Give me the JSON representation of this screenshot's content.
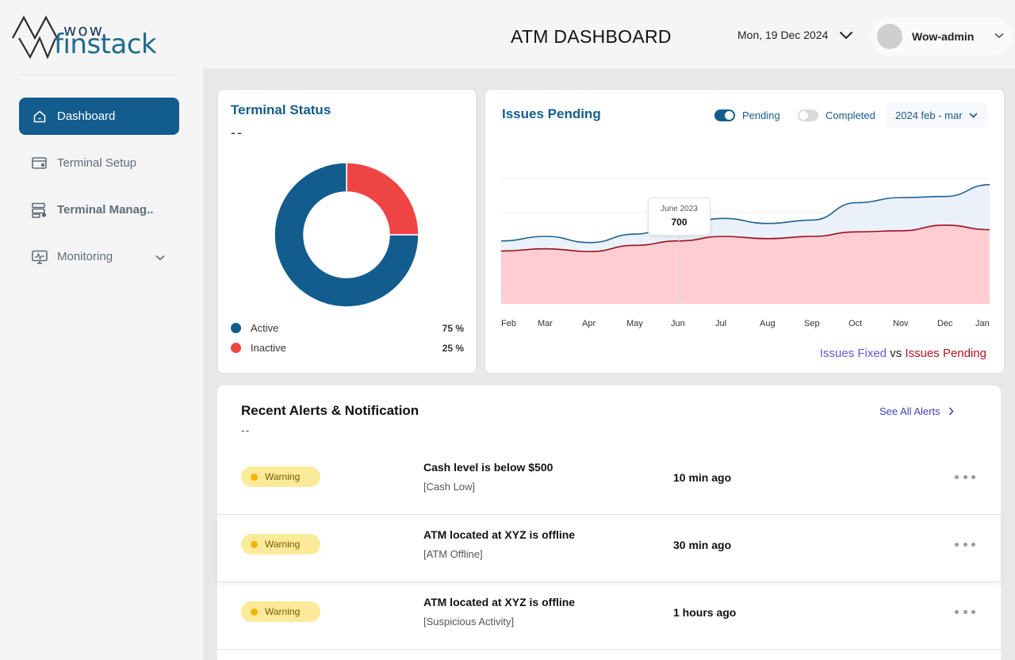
{
  "brand": {
    "line1": "wow",
    "line2": "finstack"
  },
  "header": {
    "title": "ATM DASHBOARD",
    "date": "Mon, 19 Dec 2024",
    "user": "Wow-admin"
  },
  "sidebar": {
    "items": [
      {
        "label": "Dashboard",
        "icon": "home-icon",
        "active": true
      },
      {
        "label": "Terminal Setup",
        "icon": "terminal-setup-icon"
      },
      {
        "label": "Terminal Manag..",
        "icon": "terminal-manage-icon"
      },
      {
        "label": "Monitoring",
        "icon": "monitor-icon"
      }
    ]
  },
  "terminal_status": {
    "title": "Terminal Status",
    "subtitle": "--",
    "legend": [
      {
        "label": "Active",
        "pct": "75 %",
        "color": "#135d8e",
        "value": 75
      },
      {
        "label": "Inactive",
        "pct": "25 %",
        "color": "#ef4444",
        "value": 25
      }
    ]
  },
  "issues": {
    "title": "Issues Pending",
    "toggle_pending": "Pending",
    "toggle_completed": "Completed",
    "range": "2024 feb - mar",
    "tooltip": {
      "date": "June 2023",
      "value": "700"
    },
    "caption": {
      "fixed": "Issues Fixed",
      "vs": "vs",
      "pending": "Issues Pending"
    },
    "colors": {
      "fixed_line": "#1f5f8f",
      "fixed_fill": "#eaf1fb",
      "pending_line": "#9a0f1c",
      "pending_fill": "#fecdd2"
    }
  },
  "chart_data": {
    "type": "area",
    "title": "Issues Pending",
    "categories": [
      "Feb",
      "Mar",
      "Apr",
      "May",
      "Jun",
      "Jul",
      "Aug",
      "Sep",
      "Oct",
      "Nov",
      "Dec",
      "Jan"
    ],
    "series": [
      {
        "name": "Issues Fixed",
        "values": [
          560,
          600,
          545,
          620,
          700,
          760,
          715,
          745,
          900,
          945,
          955,
          1060
        ]
      },
      {
        "name": "Issues Pending",
        "values": [
          470,
          490,
          465,
          520,
          560,
          600,
          580,
          600,
          640,
          650,
          700,
          660
        ]
      }
    ],
    "ylim": [
      0,
      1200
    ],
    "grid": true,
    "legend": "bottom-right"
  },
  "alerts": {
    "title": "Recent Alerts & Notification",
    "subtitle": "--",
    "see_all": "See All Alerts",
    "rows": [
      {
        "level": "Warning",
        "message": "Cash level is below $500",
        "category": "[Cash Low]",
        "time": "10 min ago"
      },
      {
        "level": "Warning",
        "message": "ATM located at XYZ is offline",
        "category": "[ATM Offline]",
        "time": "30 min ago"
      },
      {
        "level": "Warning",
        "message": "ATM located at XYZ is offline",
        "category": "[Suspicious Activity]",
        "time": "1 hours ago"
      }
    ]
  }
}
